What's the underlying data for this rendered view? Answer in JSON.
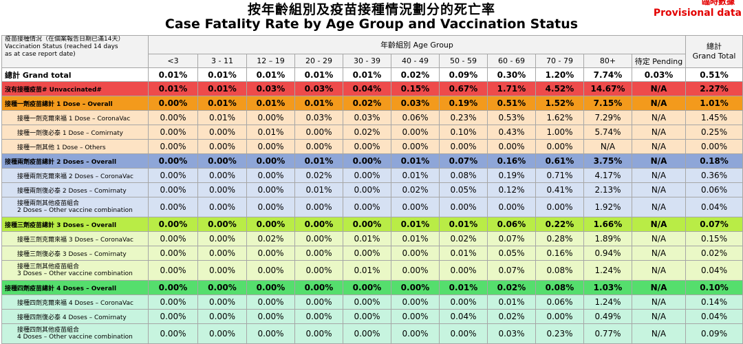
{
  "title_zh": "按年齡組別及疫苗接種情況劃分的死亡率",
  "title_en": "Case Fatality Rate by Age Group and Vaccination Status",
  "provisional_zh": "臨時數據",
  "provisional_en": "Provisional data",
  "header": {
    "status_zh": "疫苗接種情況（在個案報告日期已滿14天）",
    "status_en_1": "Vaccination Status (reached 14 days",
    "status_en_2": "as at case report date)",
    "age_group": "年齡組別 Age Group",
    "total_zh": "總計",
    "total_en": "Grand Total",
    "columns": [
      "<3",
      "3 - 11",
      "12 – 19",
      "20 - 29",
      "30 - 39",
      "40 - 49",
      "50 - 59",
      "60 - 69",
      "70 - 79",
      "80+",
      "待定 Pending"
    ]
  },
  "rows": [
    {
      "label": "總計 Grand total",
      "values": [
        "0.01%",
        "0.01%",
        "0.01%",
        "0.01%",
        "0.01%",
        "0.02%",
        "0.09%",
        "0.30%",
        "1.20%",
        "7.74%",
        "0.03%",
        "0.51%"
      ]
    },
    {
      "label": "沒有接種疫苗# Unvaccinated#",
      "values": [
        "0.01%",
        "0.01%",
        "0.03%",
        "0.03%",
        "0.04%",
        "0.15%",
        "0.67%",
        "1.71%",
        "4.52%",
        "14.67%",
        "N/A",
        "2.27%"
      ]
    },
    {
      "label": "接種一劑疫苗總計 1 Dose – Overall",
      "values": [
        "0.00%",
        "0.01%",
        "0.01%",
        "0.01%",
        "0.02%",
        "0.03%",
        "0.19%",
        "0.51%",
        "1.52%",
        "7.15%",
        "N/A",
        "1.01%"
      ]
    },
    {
      "label": "接種一劑克爾來福 1 Dose – CoronaVac",
      "values": [
        "0.00%",
        "0.01%",
        "0.00%",
        "0.03%",
        "0.03%",
        "0.06%",
        "0.23%",
        "0.53%",
        "1.62%",
        "7.29%",
        "N/A",
        "1.45%"
      ]
    },
    {
      "label": "接種一劑復必泰 1 Dose – Comirnaty",
      "values": [
        "0.00%",
        "0.00%",
        "0.01%",
        "0.00%",
        "0.02%",
        "0.00%",
        "0.10%",
        "0.43%",
        "1.00%",
        "5.74%",
        "N/A",
        "0.25%"
      ]
    },
    {
      "label": "接種一劑其他 1 Dose – Others",
      "values": [
        "0.00%",
        "0.00%",
        "0.00%",
        "0.00%",
        "0.00%",
        "0.00%",
        "0.00%",
        "0.00%",
        "0.00%",
        "N/A",
        "N/A",
        "0.00%"
      ]
    },
    {
      "label": "接種兩劑疫苗總計 2 Doses – Overall",
      "values": [
        "0.00%",
        "0.00%",
        "0.00%",
        "0.01%",
        "0.00%",
        "0.01%",
        "0.07%",
        "0.16%",
        "0.61%",
        "3.75%",
        "N/A",
        "0.18%"
      ]
    },
    {
      "label": "接種兩劑克爾來福 2 Doses – CoronaVac",
      "values": [
        "0.00%",
        "0.00%",
        "0.00%",
        "0.02%",
        "0.00%",
        "0.01%",
        "0.08%",
        "0.19%",
        "0.71%",
        "4.17%",
        "N/A",
        "0.36%"
      ]
    },
    {
      "label": "接種兩劑復必泰 2 Doses – Comirnaty",
      "values": [
        "0.00%",
        "0.00%",
        "0.00%",
        "0.01%",
        "0.00%",
        "0.02%",
        "0.05%",
        "0.12%",
        "0.41%",
        "2.13%",
        "N/A",
        "0.06%"
      ]
    },
    {
      "label": "接種兩劑其他疫苗組合",
      "label2": "2 Doses – Other vaccine combination",
      "values": [
        "0.00%",
        "0.00%",
        "0.00%",
        "0.00%",
        "0.00%",
        "0.00%",
        "0.00%",
        "0.00%",
        "0.00%",
        "1.92%",
        "N/A",
        "0.04%"
      ]
    },
    {
      "label": "接種三劑疫苗總計 3 Doses – Overall",
      "values": [
        "0.00%",
        "0.00%",
        "0.00%",
        "0.00%",
        "0.00%",
        "0.01%",
        "0.01%",
        "0.06%",
        "0.22%",
        "1.66%",
        "N/A",
        "0.07%"
      ]
    },
    {
      "label": "接種三劑克爾來福 3 Doses – CoronaVac",
      "values": [
        "0.00%",
        "0.00%",
        "0.02%",
        "0.00%",
        "0.01%",
        "0.01%",
        "0.02%",
        "0.07%",
        "0.28%",
        "1.89%",
        "N/A",
        "0.15%"
      ]
    },
    {
      "label": "接種三劑復必泰 3 Doses – Comirnaty",
      "values": [
        "0.00%",
        "0.00%",
        "0.00%",
        "0.00%",
        "0.00%",
        "0.00%",
        "0.01%",
        "0.05%",
        "0.16%",
        "0.94%",
        "N/A",
        "0.02%"
      ]
    },
    {
      "label": "接種三劑其他疫苗組合",
      "label2": "3 Doses – Other vaccine combination",
      "values": [
        "0.00%",
        "0.00%",
        "0.00%",
        "0.00%",
        "0.01%",
        "0.00%",
        "0.00%",
        "0.07%",
        "0.08%",
        "1.24%",
        "N/A",
        "0.04%"
      ]
    },
    {
      "label": "接種四劑疫苗總計 4 Doses – Overall",
      "values": [
        "0.00%",
        "0.00%",
        "0.00%",
        "0.00%",
        "0.00%",
        "0.00%",
        "0.01%",
        "0.02%",
        "0.08%",
        "1.03%",
        "N/A",
        "0.10%"
      ]
    },
    {
      "label": "接種四劑克爾來福 4 Doses – CoronaVac",
      "values": [
        "0.00%",
        "0.00%",
        "0.00%",
        "0.00%",
        "0.00%",
        "0.00%",
        "0.00%",
        "0.01%",
        "0.06%",
        "1.24%",
        "N/A",
        "0.14%"
      ]
    },
    {
      "label": "接種四劑復必泰 4 Doses – Comirnaty",
      "values": [
        "0.00%",
        "0.00%",
        "0.00%",
        "0.00%",
        "0.00%",
        "0.00%",
        "0.04%",
        "0.02%",
        "0.00%",
        "0.49%",
        "N/A",
        "0.04%"
      ]
    },
    {
      "label": "接種四劑其他疫苗組合",
      "label2": "4 Doses – Other vaccine combination",
      "values": [
        "0.00%",
        "0.00%",
        "0.00%",
        "0.00%",
        "0.00%",
        "0.00%",
        "0.00%",
        "0.03%",
        "0.23%",
        "0.77%",
        "N/A",
        "0.09%"
      ]
    }
  ]
}
